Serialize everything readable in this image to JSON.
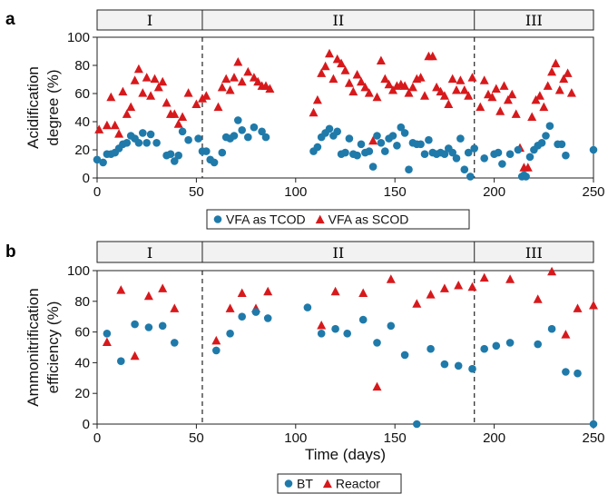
{
  "chart_data": [
    {
      "panel_letter": "a",
      "type": "scatter",
      "xlabel": "",
      "ylabel_lines": [
        "Acidification",
        "degree (%)"
      ],
      "xlim": [
        0,
        250
      ],
      "ylim": [
        0,
        100
      ],
      "xticks": [
        "0",
        "50",
        "100",
        "150",
        "200",
        "250"
      ],
      "yticks": [
        "0",
        "20",
        "40",
        "60",
        "80",
        "100"
      ],
      "grid": false,
      "phase_boundaries": [
        53,
        190
      ],
      "phases": [
        "I",
        "II",
        "III"
      ],
      "legend_position": "bottom-center",
      "colors": {
        "circle": "#1f7aaa",
        "triangle": "#d7191c"
      },
      "series": [
        {
          "name": "VFA as TCOD",
          "marker": "circle",
          "points": [
            [
              0,
              13
            ],
            [
              3,
              11
            ],
            [
              5,
              17
            ],
            [
              7,
              17
            ],
            [
              9,
              18
            ],
            [
              11,
              21
            ],
            [
              13,
              24
            ],
            [
              15,
              25
            ],
            [
              17,
              30
            ],
            [
              19,
              28
            ],
            [
              21,
              25
            ],
            [
              23,
              32
            ],
            [
              25,
              25
            ],
            [
              27,
              31
            ],
            [
              30,
              25
            ],
            [
              35,
              16
            ],
            [
              37,
              17
            ],
            [
              39,
              12
            ],
            [
              41,
              16
            ],
            [
              43,
              33
            ],
            [
              46,
              27
            ],
            [
              51,
              28
            ],
            [
              53,
              19
            ],
            [
              55,
              19
            ],
            [
              57,
              13
            ],
            [
              59,
              11
            ],
            [
              63,
              18
            ],
            [
              65,
              29
            ],
            [
              67,
              28
            ],
            [
              69,
              30
            ],
            [
              71,
              41
            ],
            [
              73,
              34
            ],
            [
              76,
              29
            ],
            [
              79,
              36
            ],
            [
              83,
              33
            ],
            [
              85,
              29
            ],
            [
              109,
              19
            ],
            [
              111,
              22
            ],
            [
              113,
              29
            ],
            [
              115,
              32
            ],
            [
              117,
              35
            ],
            [
              119,
              30
            ],
            [
              121,
              33
            ],
            [
              123,
              17
            ],
            [
              125,
              18
            ],
            [
              127,
              28
            ],
            [
              129,
              17
            ],
            [
              131,
              16
            ],
            [
              133,
              24
            ],
            [
              135,
              18
            ],
            [
              137,
              19
            ],
            [
              139,
              8
            ],
            [
              141,
              30
            ],
            [
              143,
              25
            ],
            [
              145,
              19
            ],
            [
              147,
              28
            ],
            [
              149,
              30
            ],
            [
              151,
              23
            ],
            [
              153,
              36
            ],
            [
              155,
              32
            ],
            [
              157,
              6
            ],
            [
              159,
              25
            ],
            [
              161,
              24
            ],
            [
              163,
              24
            ],
            [
              165,
              17
            ],
            [
              167,
              27
            ],
            [
              169,
              18
            ],
            [
              171,
              17
            ],
            [
              173,
              18
            ],
            [
              175,
              17
            ],
            [
              177,
              21
            ],
            [
              179,
              18
            ],
            [
              181,
              14
            ],
            [
              183,
              28
            ],
            [
              185,
              6
            ],
            [
              187,
              18
            ],
            [
              188,
              1
            ],
            [
              190,
              21
            ],
            [
              195,
              14
            ],
            [
              200,
              17
            ],
            [
              202,
              18
            ],
            [
              204,
              10
            ],
            [
              208,
              17
            ],
            [
              212,
              20
            ],
            [
              214,
              1
            ],
            [
              215,
              2
            ],
            [
              216,
              1
            ],
            [
              218,
              15
            ],
            [
              220,
              20
            ],
            [
              222,
              23
            ],
            [
              224,
              25
            ],
            [
              226,
              30
            ],
            [
              228,
              37
            ],
            [
              232,
              24
            ],
            [
              234,
              24
            ],
            [
              236,
              16
            ],
            [
              250,
              20
            ]
          ]
        },
        {
          "name": "VFA as SCOD",
          "marker": "triangle",
          "points": [
            [
              1,
              34
            ],
            [
              5,
              37
            ],
            [
              7,
              57
            ],
            [
              9,
              37
            ],
            [
              11,
              31
            ],
            [
              13,
              61
            ],
            [
              15,
              45
            ],
            [
              17,
              50
            ],
            [
              19,
              69
            ],
            [
              21,
              77
            ],
            [
              23,
              60
            ],
            [
              25,
              71
            ],
            [
              27,
              58
            ],
            [
              29,
              70
            ],
            [
              31,
              64
            ],
            [
              33,
              68
            ],
            [
              35,
              53
            ],
            [
              37,
              45
            ],
            [
              39,
              45
            ],
            [
              41,
              38
            ],
            [
              43,
              43
            ],
            [
              46,
              60
            ],
            [
              50,
              52
            ],
            [
              53,
              56
            ],
            [
              55,
              58
            ],
            [
              61,
              50
            ],
            [
              63,
              64
            ],
            [
              65,
              70
            ],
            [
              67,
              62
            ],
            [
              69,
              71
            ],
            [
              71,
              82
            ],
            [
              73,
              68
            ],
            [
              76,
              75
            ],
            [
              79,
              71
            ],
            [
              81,
              68
            ],
            [
              83,
              65
            ],
            [
              85,
              65
            ],
            [
              87,
              63
            ],
            [
              109,
              46
            ],
            [
              111,
              55
            ],
            [
              113,
              74
            ],
            [
              115,
              79
            ],
            [
              117,
              88
            ],
            [
              119,
              70
            ],
            [
              121,
              84
            ],
            [
              123,
              81
            ],
            [
              125,
              76
            ],
            [
              127,
              67
            ],
            [
              129,
              61
            ],
            [
              131,
              73
            ],
            [
              133,
              68
            ],
            [
              135,
              64
            ],
            [
              137,
              60
            ],
            [
              139,
              26
            ],
            [
              141,
              57
            ],
            [
              143,
              83
            ],
            [
              145,
              70
            ],
            [
              147,
              66
            ],
            [
              149,
              62
            ],
            [
              151,
              65
            ],
            [
              153,
              66
            ],
            [
              155,
              65
            ],
            [
              157,
              60
            ],
            [
              159,
              64
            ],
            [
              161,
              70
            ],
            [
              163,
              71
            ],
            [
              165,
              58
            ],
            [
              167,
              86
            ],
            [
              169,
              86
            ],
            [
              171,
              64
            ],
            [
              173,
              61
            ],
            [
              175,
              58
            ],
            [
              177,
              52
            ],
            [
              179,
              70
            ],
            [
              181,
              62
            ],
            [
              183,
              69
            ],
            [
              185,
              62
            ],
            [
              187,
              58
            ],
            [
              189,
              71
            ],
            [
              193,
              50
            ],
            [
              195,
              69
            ],
            [
              197,
              59
            ],
            [
              199,
              57
            ],
            [
              201,
              63
            ],
            [
              203,
              47
            ],
            [
              205,
              65
            ],
            [
              207,
              55
            ],
            [
              209,
              59
            ],
            [
              211,
              45
            ],
            [
              213,
              21
            ],
            [
              215,
              7
            ],
            [
              217,
              7
            ],
            [
              219,
              43
            ],
            [
              221,
              55
            ],
            [
              223,
              58
            ],
            [
              225,
              50
            ],
            [
              227,
              65
            ],
            [
              229,
              75
            ],
            [
              231,
              81
            ],
            [
              233,
              62
            ],
            [
              235,
              70
            ],
            [
              237,
              74
            ],
            [
              239,
              60
            ]
          ]
        }
      ]
    },
    {
      "panel_letter": "b",
      "type": "scatter",
      "xlabel": "Time (days)",
      "ylabel_lines": [
        "Ammonitrification",
        "efficiency (%)"
      ],
      "xlim": [
        0,
        250
      ],
      "ylim": [
        0,
        100
      ],
      "xticks": [
        "0",
        "50",
        "100",
        "150",
        "200",
        "250"
      ],
      "yticks": [
        "0",
        "20",
        "40",
        "60",
        "80",
        "100"
      ],
      "grid": false,
      "phase_boundaries": [
        53,
        190
      ],
      "phases": [
        "I",
        "II",
        "III"
      ],
      "legend_position": "bottom-center",
      "colors": {
        "circle": "#1f7aaa",
        "triangle": "#d7191c"
      },
      "series": [
        {
          "name": "BT",
          "marker": "circle",
          "points": [
            [
              5,
              59
            ],
            [
              12,
              41
            ],
            [
              19,
              65
            ],
            [
              26,
              63
            ],
            [
              33,
              64
            ],
            [
              39,
              53
            ],
            [
              60,
              48
            ],
            [
              67,
              59
            ],
            [
              73,
              70
            ],
            [
              80,
              73
            ],
            [
              86,
              69
            ],
            [
              106,
              76
            ],
            [
              113,
              59
            ],
            [
              120,
              62
            ],
            [
              126,
              59
            ],
            [
              134,
              68
            ],
            [
              141,
              53
            ],
            [
              148,
              64
            ],
            [
              155,
              45
            ],
            [
              161,
              0
            ],
            [
              168,
              49
            ],
            [
              175,
              39
            ],
            [
              182,
              38
            ],
            [
              189,
              36
            ],
            [
              195,
              49
            ],
            [
              201,
              51
            ],
            [
              208,
              53
            ],
            [
              222,
              52
            ],
            [
              229,
              62
            ],
            [
              236,
              34
            ],
            [
              242,
              33
            ],
            [
              250,
              0
            ]
          ]
        },
        {
          "name": "Reactor",
          "marker": "triangle",
          "points": [
            [
              5,
              53
            ],
            [
              12,
              87
            ],
            [
              19,
              44
            ],
            [
              26,
              83
            ],
            [
              33,
              88
            ],
            [
              39,
              75
            ],
            [
              60,
              54
            ],
            [
              67,
              75
            ],
            [
              73,
              85
            ],
            [
              80,
              75
            ],
            [
              86,
              86
            ],
            [
              113,
              64
            ],
            [
              120,
              86
            ],
            [
              134,
              85
            ],
            [
              141,
              24
            ],
            [
              148,
              94
            ],
            [
              161,
              78
            ],
            [
              168,
              84
            ],
            [
              175,
              88
            ],
            [
              182,
              90
            ],
            [
              189,
              89
            ],
            [
              195,
              95
            ],
            [
              208,
              94
            ],
            [
              222,
              81
            ],
            [
              229,
              99
            ],
            [
              236,
              58
            ],
            [
              242,
              75
            ],
            [
              250,
              77
            ]
          ]
        }
      ]
    }
  ]
}
